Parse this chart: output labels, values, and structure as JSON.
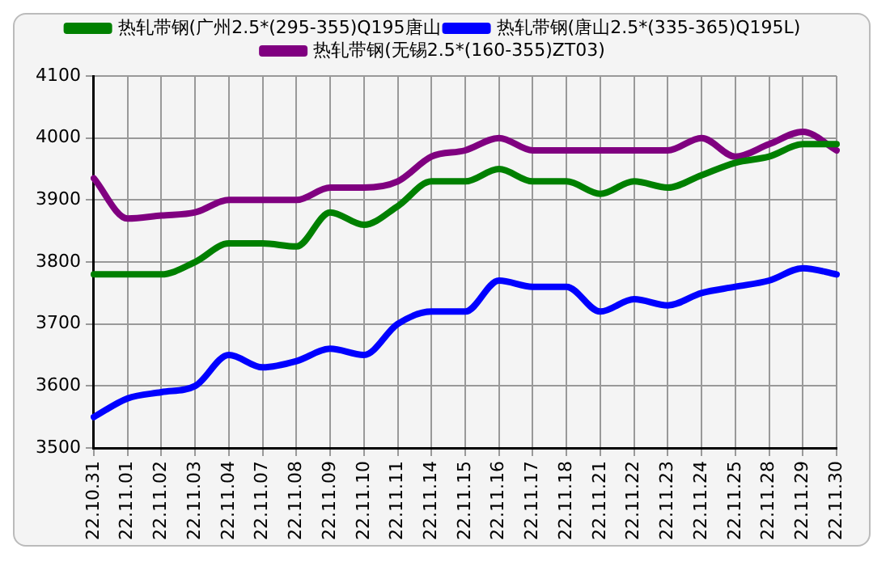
{
  "chart_data": {
    "type": "line",
    "categories": [
      "22.10.31",
      "22.11.01",
      "22.11.02",
      "22.11.03",
      "22.11.04",
      "22.11.07",
      "22.11.08",
      "22.11.09",
      "22.11.10",
      "22.11.11",
      "22.11.14",
      "22.11.15",
      "22.11.16",
      "22.11.17",
      "22.11.18",
      "22.11.21",
      "22.11.22",
      "22.11.23",
      "22.11.24",
      "22.11.25",
      "22.11.28",
      "22.11.29",
      "22.11.30"
    ],
    "series": [
      {
        "name": "热轧带钢(广州2.5*(295-355)Q195唐山",
        "color": "#008000",
        "values": [
          3780,
          3780,
          3780,
          3800,
          3830,
          3830,
          3825,
          3880,
          3860,
          3890,
          3930,
          3930,
          3950,
          3930,
          3930,
          3910,
          3930,
          3920,
          3940,
          3960,
          3970,
          3990,
          3990
        ]
      },
      {
        "name": "热轧带钢(唐山2.5*(335-365)Q195L)",
        "color": "#0000ff",
        "values": [
          3550,
          3580,
          3590,
          3600,
          3650,
          3630,
          3640,
          3660,
          3650,
          3700,
          3720,
          3720,
          3770,
          3760,
          3760,
          3720,
          3740,
          3730,
          3750,
          3760,
          3770,
          3790,
          3780
        ]
      },
      {
        "name": "热轧带钢(无锡2.5*(160-355)ZT03)",
        "color": "#800080",
        "values": [
          3935,
          3870,
          3875,
          3880,
          3900,
          3900,
          3900,
          3920,
          3920,
          3930,
          3970,
          3980,
          4000,
          3980,
          3980,
          3980,
          3980,
          3980,
          4000,
          3970,
          3990,
          4010,
          3980
        ]
      }
    ],
    "ylim": [
      3500,
      4100
    ],
    "yticks": [
      3500,
      3600,
      3700,
      3800,
      3900,
      4000,
      4100
    ],
    "grid": true,
    "legend": "top",
    "marker": "none",
    "line_style": "solid"
  }
}
